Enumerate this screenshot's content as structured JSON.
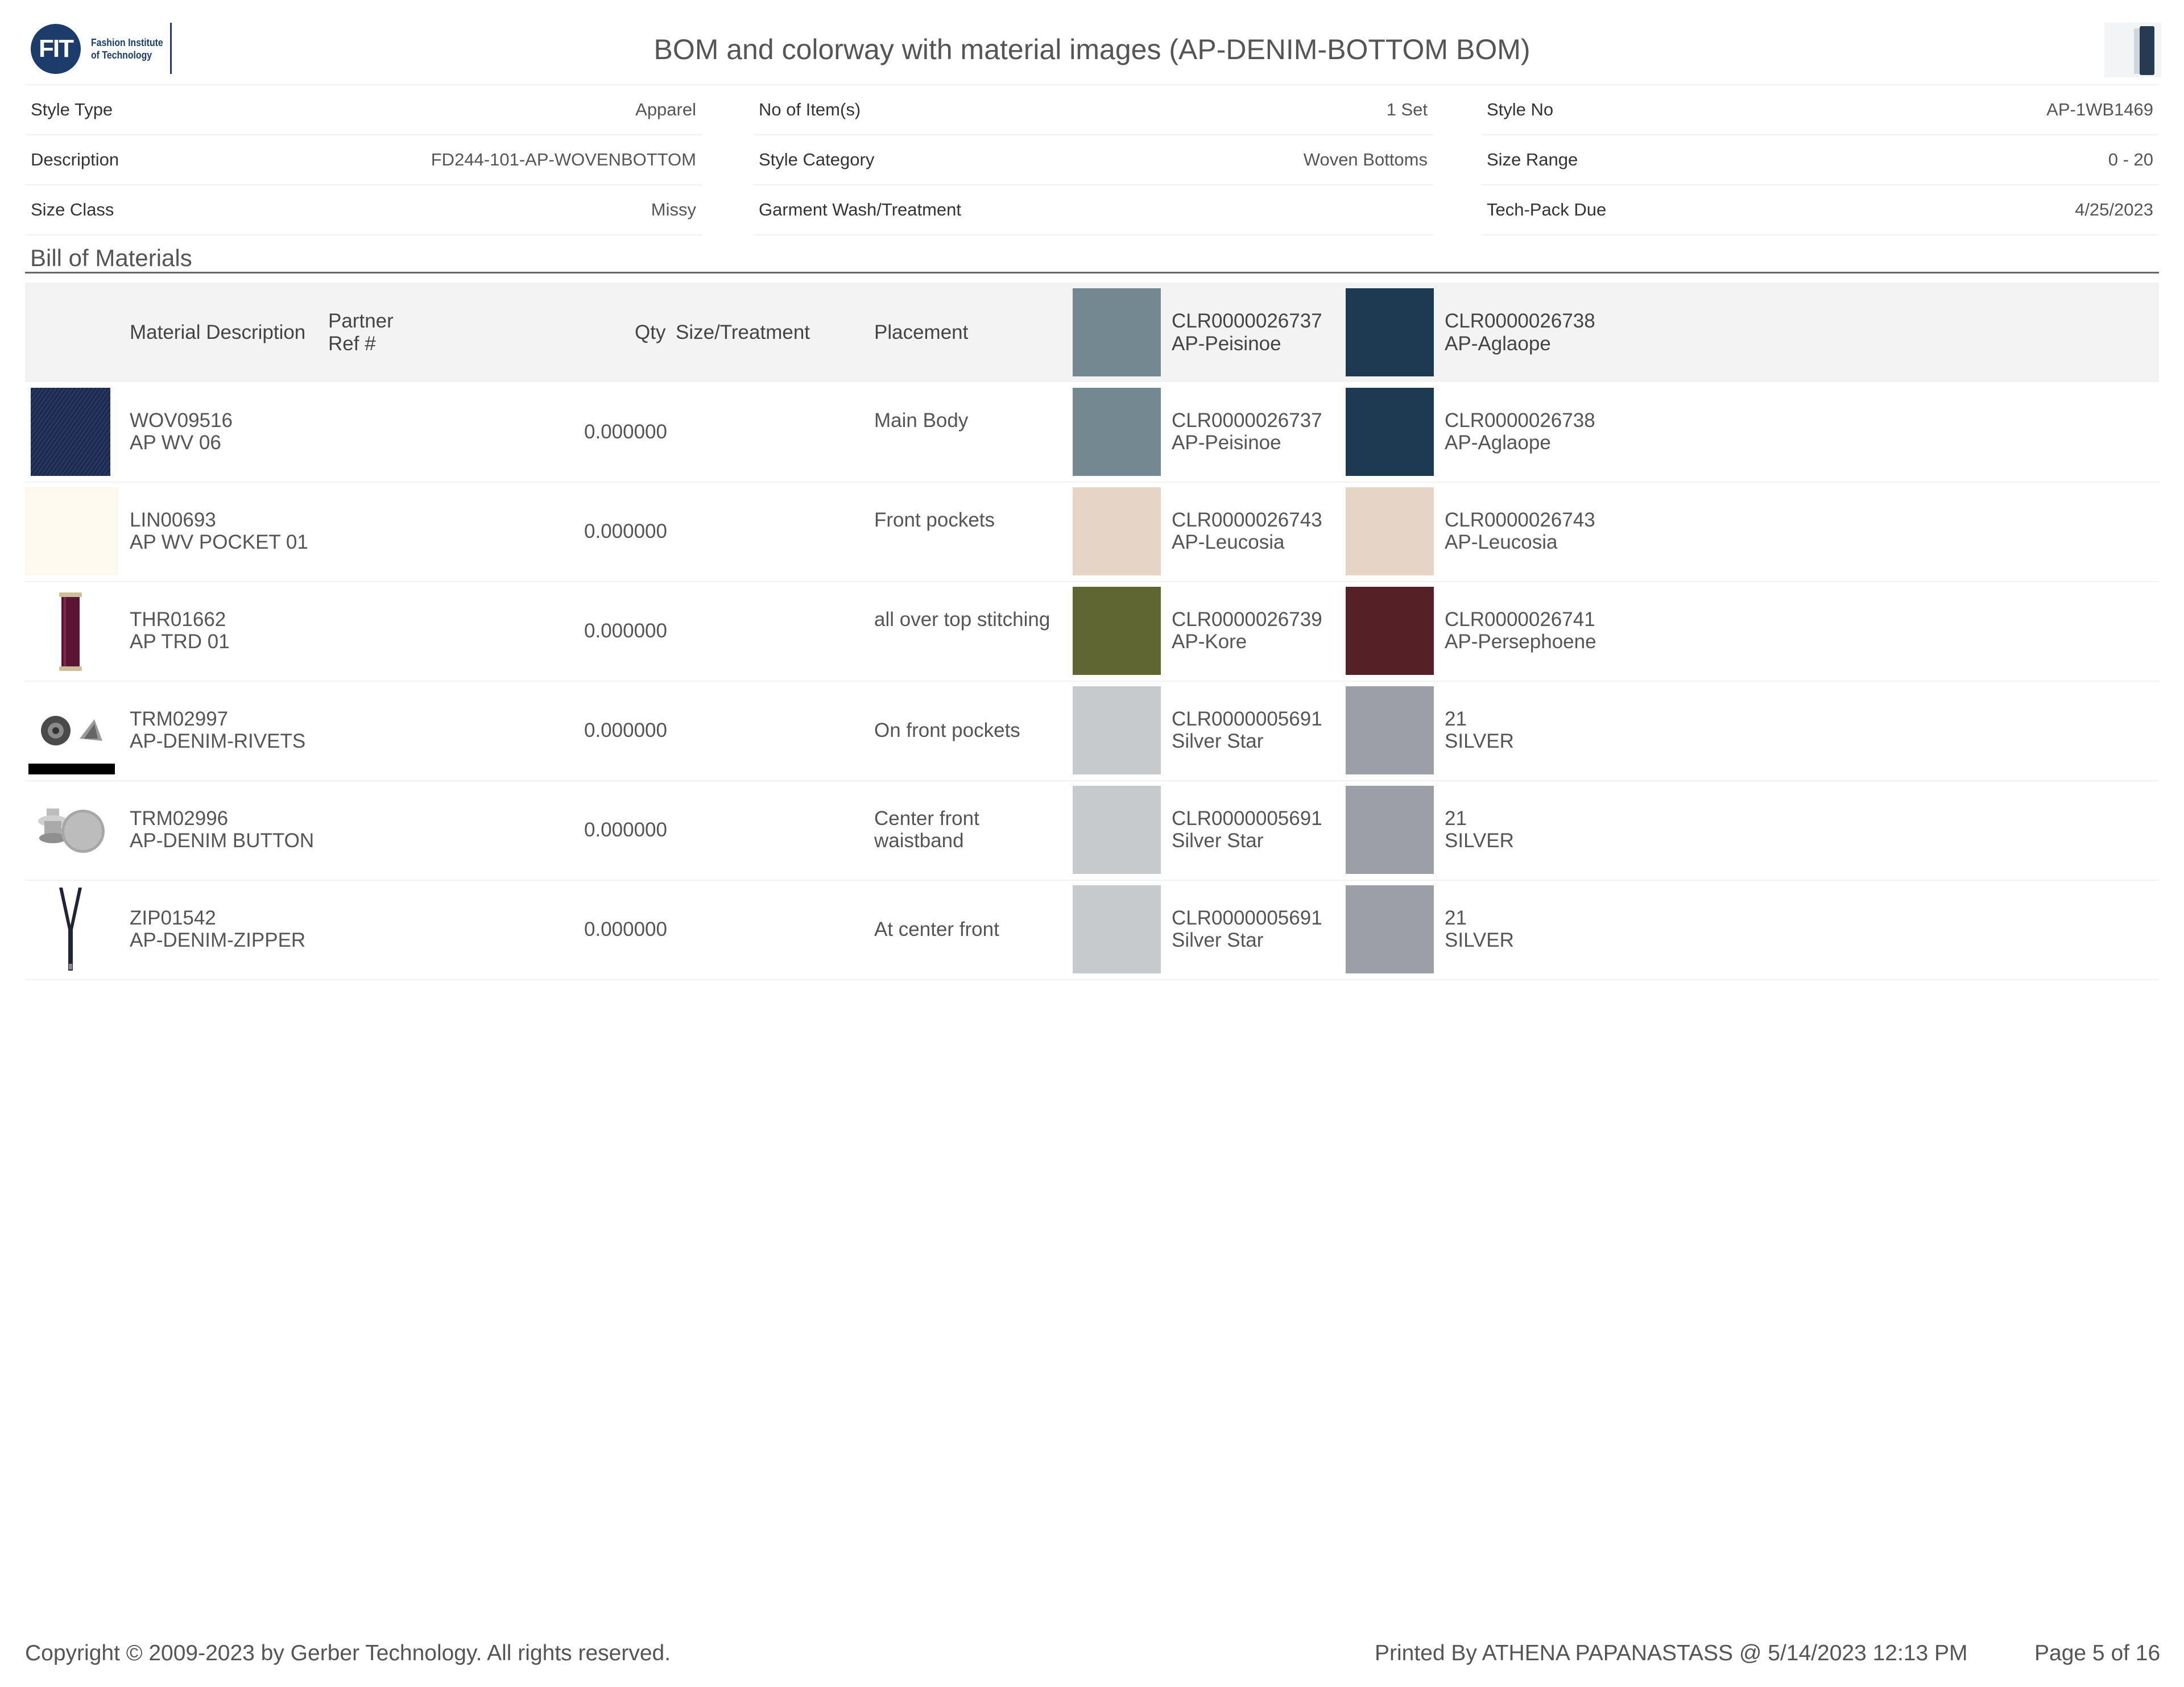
{
  "header": {
    "logo_mark": "FIT",
    "logo_line1": "Fashion Institute",
    "logo_line2": "of Technology",
    "title": "BOM and colorway with material images (AP-DENIM-BOTTOM BOM)"
  },
  "attributes": {
    "style_type": {
      "label": "Style Type",
      "value": "Apparel"
    },
    "description": {
      "label": "Description",
      "value": "FD244-101-AP-WOVENBOTTOM"
    },
    "size_class": {
      "label": "Size Class",
      "value": "Missy"
    },
    "no_of_items": {
      "label": "No of Item(s)",
      "value": "1 Set"
    },
    "style_category": {
      "label": "Style Category",
      "value": "Woven Bottoms"
    },
    "garment_wash": {
      "label": "Garment Wash/Treatment",
      "value": ""
    },
    "style_no": {
      "label": "Style No",
      "value": "AP-1WB1469"
    },
    "size_range": {
      "label": "Size Range",
      "value": "0 - 20"
    },
    "tech_pack_due": {
      "label": "Tech-Pack Due",
      "value": "4/25/2023"
    }
  },
  "section_title": "Bill of Materials",
  "columns": {
    "material_description": "Material Description",
    "partner_ref_1": "Partner",
    "partner_ref_2": "Ref #",
    "qty": "Qty",
    "size_treatment": "Size/Treatment",
    "placement": "Placement",
    "colorway1": {
      "code": "CLR0000026737",
      "name": "AP-Peisinoe",
      "color": "#748892"
    },
    "colorway2": {
      "code": "CLR0000026738",
      "name": "AP-Aglaope",
      "color": "#1e3a52"
    }
  },
  "rows": [
    {
      "image": "denim-fabric",
      "code": "WOV09516",
      "name": "AP WV 06",
      "qty": "0.000000",
      "placement_1": "Main Body",
      "placement_2": "",
      "c1_code": "CLR0000026737",
      "c1_name": "AP-Peisinoe",
      "c1_color": "#748892",
      "c2_code": "CLR0000026738",
      "c2_name": "AP-Aglaope",
      "c2_color": "#1e3a52"
    },
    {
      "image": "lining-fabric",
      "code": "LIN00693",
      "name": "AP WV POCKET 01",
      "qty": "0.000000",
      "placement_1": "Front pockets",
      "placement_2": "",
      "c1_code": "CLR0000026743",
      "c1_name": "AP-Leucosia",
      "c1_color": "#e6d5c6",
      "c2_code": "CLR0000026743",
      "c2_name": "AP-Leucosia",
      "c2_color": "#e6d5c6"
    },
    {
      "image": "thread-spool",
      "code": "THR01662",
      "name": "AP TRD 01",
      "qty": "0.000000",
      "placement_1": "all over top stitching",
      "placement_2": "",
      "c1_code": "CLR0000026739",
      "c1_name": "AP-Kore",
      "c1_color": "#5f6632",
      "c2_code": "CLR0000026741",
      "c2_name": "AP-Persephoene",
      "c2_color": "#562126"
    },
    {
      "image": "rivets",
      "code": "TRM02997",
      "name": "AP-DENIM-RIVETS",
      "qty": "0.000000",
      "placement_1": "On front pockets",
      "placement_2": "",
      "c1_code": "CLR0000005691",
      "c1_name": "Silver Star",
      "c1_color": "#c7cacd",
      "c2_code": "21",
      "c2_name": "SILVER",
      "c2_color": "#9c9fa7"
    },
    {
      "image": "button",
      "code": "TRM02996",
      "name": "AP-DENIM BUTTON",
      "qty": "0.000000",
      "placement_1": "Center front",
      "placement_2": "waistband",
      "c1_code": "CLR0000005691",
      "c1_name": "Silver Star",
      "c1_color": "#c7cacd",
      "c2_code": "21",
      "c2_name": "SILVER",
      "c2_color": "#9c9fa7"
    },
    {
      "image": "zipper",
      "code": "ZIP01542",
      "name": "AP-DENIM-ZIPPER",
      "qty": "0.000000",
      "placement_1": "At center front",
      "placement_2": "",
      "c1_code": "CLR0000005691",
      "c1_name": "Silver Star",
      "c1_color": "#c7cacd",
      "c2_code": "21",
      "c2_name": "SILVER",
      "c2_color": "#9c9fa7"
    }
  ],
  "footer": {
    "copyright": "Copyright © 2009-2023 by Gerber Technology. All rights reserved.",
    "printed_by": "Printed By ATHENA PAPANASTASS @ 5/14/2023 12:13 PM",
    "page": "Page 5 of 16"
  }
}
